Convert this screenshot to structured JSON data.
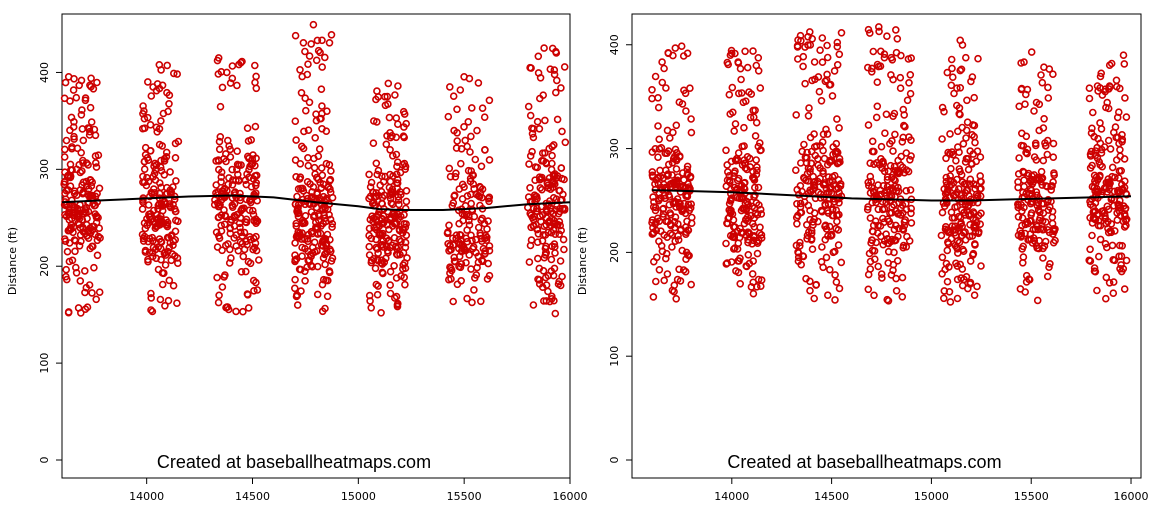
{
  "chart_data": [
    {
      "type": "scatter",
      "ylabel": "Distance (ft)",
      "xlabel": "",
      "watermark": "Created at baseballheatmaps.com",
      "xlim": [
        13600,
        16000
      ],
      "ylim": [
        0,
        450
      ],
      "xticks": [
        14000,
        14500,
        15000,
        15500,
        16000
      ],
      "yticks": [
        0,
        100,
        200,
        300,
        400
      ],
      "point_color": "#cc0000",
      "trend_color": "#000000",
      "clusters": [
        {
          "x_range": [
            13610,
            13780
          ],
          "y_min": 150,
          "y_max": 398,
          "y_center": 255,
          "n": 210
        },
        {
          "x_range": [
            13980,
            14150
          ],
          "y_min": 150,
          "y_max": 408,
          "y_center": 262,
          "n": 200
        },
        {
          "x_range": [
            14320,
            14530
          ],
          "y_min": 152,
          "y_max": 416,
          "y_center": 265,
          "n": 210
        },
        {
          "x_range": [
            14700,
            14880
          ],
          "y_min": 152,
          "y_max": 450,
          "y_center": 250,
          "n": 230
        },
        {
          "x_range": [
            15050,
            15230
          ],
          "y_min": 150,
          "y_max": 396,
          "y_center": 245,
          "n": 220
        },
        {
          "x_range": [
            15420,
            15620
          ],
          "y_min": 153,
          "y_max": 400,
          "y_center": 240,
          "n": 170
        },
        {
          "x_range": [
            15800,
            15980
          ],
          "y_min": 150,
          "y_max": 430,
          "y_center": 255,
          "n": 200
        }
      ],
      "trend": {
        "x": [
          13600,
          13800,
          14000,
          14200,
          14400,
          14600,
          14800,
          15000,
          15100,
          15200,
          15400,
          15600,
          15800,
          16000
        ],
        "y": [
          266,
          268,
          270,
          272,
          273,
          271,
          266,
          262,
          259,
          258,
          258,
          260,
          264,
          266
        ]
      }
    },
    {
      "type": "scatter",
      "ylabel": "Distance (ft)",
      "xlabel": "",
      "watermark": "Created at baseballheatmaps.com",
      "xlim": [
        13500,
        16050
      ],
      "ylim": [
        0,
        420
      ],
      "xticks": [
        14000,
        14500,
        15000,
        15500,
        16000
      ],
      "yticks": [
        0,
        100,
        200,
        300,
        400
      ],
      "point_color": "#cc0000",
      "trend_color": "#000000",
      "clusters": [
        {
          "x_range": [
            13600,
            13800
          ],
          "y_min": 155,
          "y_max": 400,
          "y_center": 250,
          "n": 210
        },
        {
          "x_range": [
            13970,
            14150
          ],
          "y_min": 155,
          "y_max": 395,
          "y_center": 245,
          "n": 200
        },
        {
          "x_range": [
            14320,
            14550
          ],
          "y_min": 152,
          "y_max": 415,
          "y_center": 250,
          "n": 230
        },
        {
          "x_range": [
            14680,
            14900
          ],
          "y_min": 152,
          "y_max": 418,
          "y_center": 245,
          "n": 220
        },
        {
          "x_range": [
            15050,
            15250
          ],
          "y_min": 152,
          "y_max": 405,
          "y_center": 240,
          "n": 220
        },
        {
          "x_range": [
            15430,
            15620
          ],
          "y_min": 152,
          "y_max": 393,
          "y_center": 245,
          "n": 180
        },
        {
          "x_range": [
            15790,
            15980
          ],
          "y_min": 155,
          "y_max": 392,
          "y_center": 250,
          "n": 200
        }
      ],
      "trend": {
        "x": [
          13600,
          13800,
          14000,
          14200,
          14400,
          14600,
          14800,
          15000,
          15200,
          15400,
          15600,
          15800,
          16000
        ],
        "y": [
          260,
          259,
          258,
          256,
          254,
          252,
          251,
          250,
          250,
          251,
          252,
          253,
          254
        ]
      }
    }
  ]
}
